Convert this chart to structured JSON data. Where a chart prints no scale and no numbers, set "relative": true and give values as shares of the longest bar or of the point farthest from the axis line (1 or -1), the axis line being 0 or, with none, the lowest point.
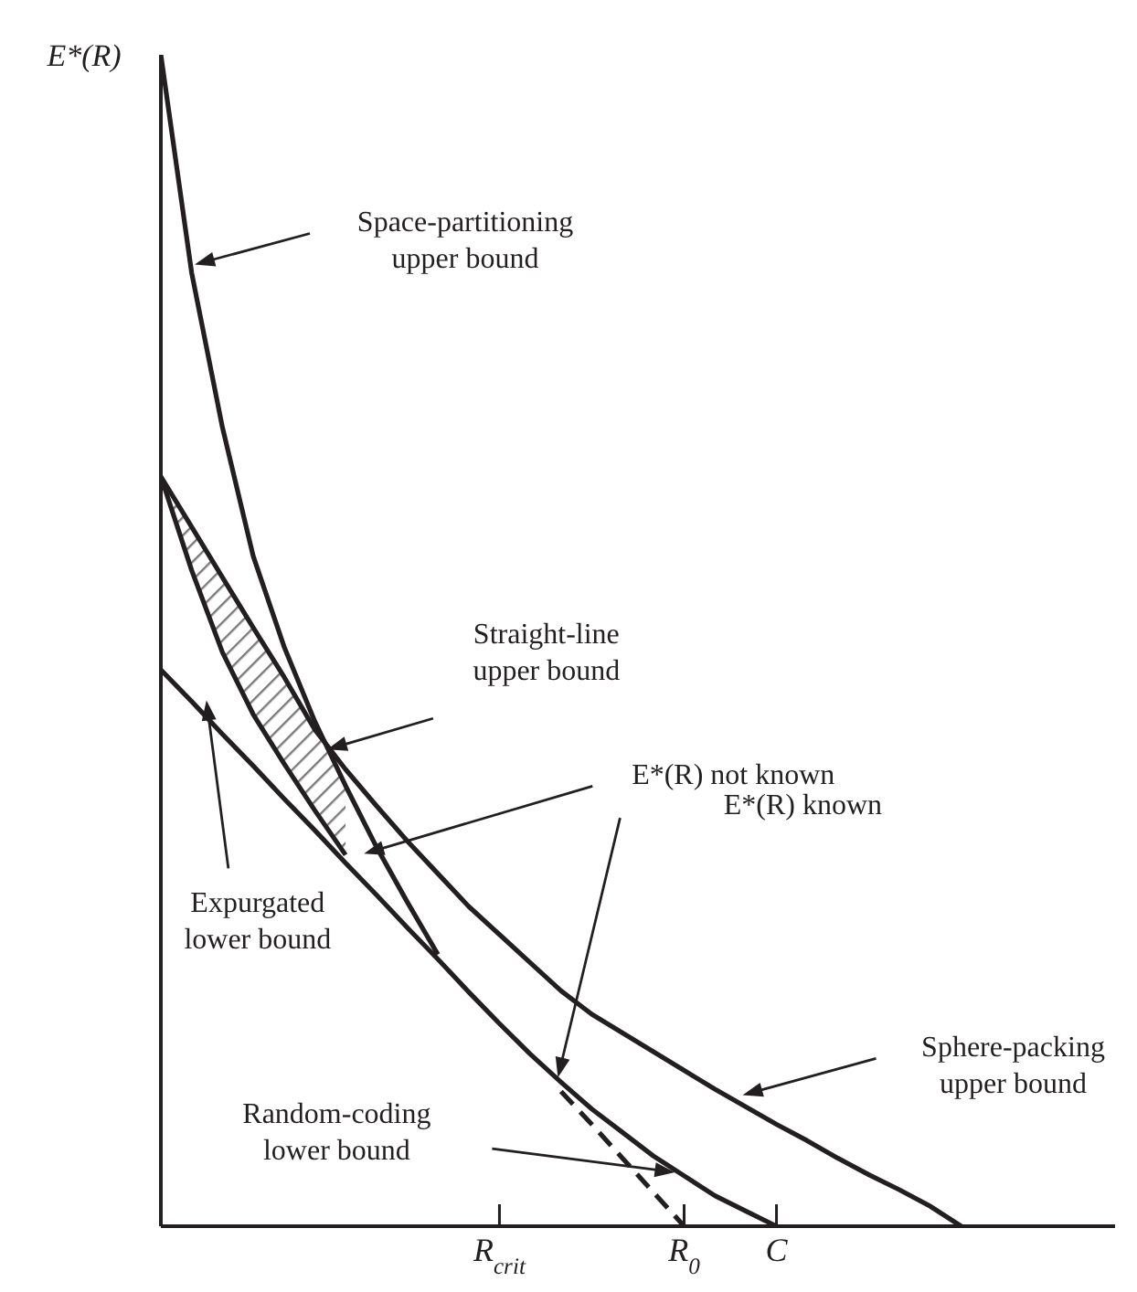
{
  "chart_data": {
    "type": "line",
    "relative": true,
    "ylabel": "E*(R)",
    "categories": [
      null,
      null,
      null,
      null,
      null,
      null,
      null,
      null,
      null,
      null,
      null,
      "R$_{crit}$",
      null,
      null,
      null,
      null,
      null,
      "R$_{0}$",
      null,
      null,
      "C",
      null,
      null,
      null,
      null,
      null,
      null,
      null,
      null,
      null,
      null,
      null
    ],
    "series": [
      {
        "color": "#231f20",
        "values": [
          1,
          0.814,
          0.682,
          0.572,
          0.495,
          0.431,
          0.376,
          0.324,
          0.277,
          0.232,
          null,
          null,
          null,
          null,
          null,
          null,
          null,
          null,
          null,
          null,
          null,
          null,
          null,
          null,
          null,
          null,
          null,
          null,
          null,
          null,
          null,
          null
        ]
      },
      {
        "color": "#231f20",
        "values": [
          0.64,
          0.597,
          0.554,
          0.511,
          0.469,
          0.424,
          0.39,
          0.359,
          0.329,
          0.301,
          0.273,
          0.249,
          0.225,
          0.201,
          0.181,
          0.165,
          0.149,
          0.133,
          0.117,
          0.102,
          0.087,
          0.073,
          0.058,
          0.044,
          0.031,
          0.017,
          0,
          null,
          null,
          null,
          null,
          null
        ]
      },
      {
        "color": "#231f20",
        "values": [
          0.64,
          0.56,
          0.49,
          0.437,
          0.395,
          0.355,
          0.317,
          null,
          null,
          null,
          null,
          null,
          null,
          null,
          null,
          null,
          null,
          null,
          null,
          null,
          null,
          null,
          null,
          null,
          null,
          null,
          null,
          null,
          null,
          null,
          null,
          null
        ],
        "lower": [
          0.64,
          0.56,
          0.49,
          0.437,
          0.395,
          0.355,
          0.317,
          null,
          null,
          null,
          null,
          null,
          null,
          null,
          null,
          null,
          null,
          null,
          null,
          null,
          null,
          null,
          null,
          null,
          null,
          null,
          null,
          null,
          null,
          null,
          null,
          null
        ],
        "upper": [
          0.64,
          0.597,
          0.554,
          0.511,
          0.469,
          0.424,
          0.376,
          null,
          null,
          null,
          null,
          null,
          null,
          null,
          null,
          null,
          null,
          null,
          null,
          null,
          null,
          null,
          null,
          null,
          null,
          null,
          null,
          null,
          null,
          null,
          null,
          null
        ]
      },
      {
        "color": "#231f20",
        "values": [
          0.475,
          0.448,
          0.42,
          0.393,
          0.365,
          0.338,
          0.31,
          0.283,
          0.255,
          0.228,
          0.2,
          0.173,
          0.147,
          0.123,
          0.1,
          0.08,
          0.06,
          0.043,
          0.026,
          0.013,
          0,
          null,
          null,
          null,
          null,
          null,
          null,
          null,
          null,
          null,
          null,
          null
        ]
      },
      {
        "color": "#231f20",
        "line_style": "dashed",
        "values": [
          null,
          null,
          null,
          null,
          null,
          null,
          null,
          null,
          null,
          null,
          null,
          null,
          null,
          0.115,
          0.087,
          0.058,
          0.029,
          0,
          null,
          null,
          null,
          null,
          null,
          null,
          null,
          null,
          null,
          null,
          null,
          null,
          null,
          null
        ]
      }
    ],
    "annotations": [
      "Space-partitioning\nupper bound",
      "Straight-line\nupper bound",
      "E*(R) not known",
      "E*(R) known",
      "Expurgated\nlower bound",
      "Sphere-packing\nupper bound",
      "Random-coding\nlower bound"
    ]
  }
}
